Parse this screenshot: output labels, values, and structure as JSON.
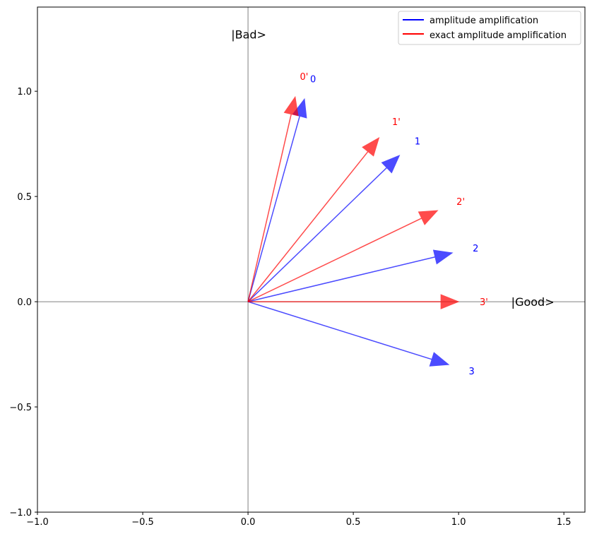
{
  "chart_data": {
    "type": "quiver",
    "title": "",
    "xlabel": "",
    "ylabel": "",
    "xlim": [
      -1.0,
      1.6
    ],
    "ylim": [
      -1.0,
      1.4
    ],
    "grid": false,
    "xticks": [
      -1.0,
      -0.5,
      0.0,
      0.5,
      1.0,
      1.5
    ],
    "xtick_labels": [
      "−1.0",
      "−0.5",
      "0.0",
      "0.5",
      "1.0",
      "1.5"
    ],
    "yticks": [
      -1.0,
      -0.5,
      0.0,
      0.5,
      1.0
    ],
    "ytick_labels": [
      "−1.0",
      "−0.5",
      "0.0",
      "0.5",
      "1.0"
    ],
    "axis_annotations": [
      {
        "text": "|Bad>",
        "x": -0.08,
        "y": 1.27
      },
      {
        "text": "|Good>",
        "x": 1.25,
        "y": 0.0
      }
    ],
    "legend": {
      "placement": "top-right",
      "entries": [
        {
          "label": "amplitude amplification",
          "color": "#0000ff"
        },
        {
          "label": "exact amplitude amplification",
          "color": "#ff0000"
        }
      ]
    },
    "series": [
      {
        "name": "amplitude amplification",
        "color": "#0000ff",
        "vectors": [
          {
            "label": "0",
            "x": 0.268,
            "y": 0.963
          },
          {
            "label": "1",
            "x": 0.719,
            "y": 0.695
          },
          {
            "label": "2",
            "x": 0.97,
            "y": 0.232
          },
          {
            "label": "3",
            "x": 0.953,
            "y": -0.299
          }
        ]
      },
      {
        "name": "exact amplitude amplification",
        "color": "#ff0000",
        "vectors": [
          {
            "label": "0'",
            "x": 0.224,
            "y": 0.973
          },
          {
            "label": "1'",
            "x": 0.622,
            "y": 0.779
          },
          {
            "label": "2'",
            "x": 0.9,
            "y": 0.433
          },
          {
            "label": "3'",
            "x": 1.0,
            "y": 0.0
          }
        ]
      }
    ]
  }
}
